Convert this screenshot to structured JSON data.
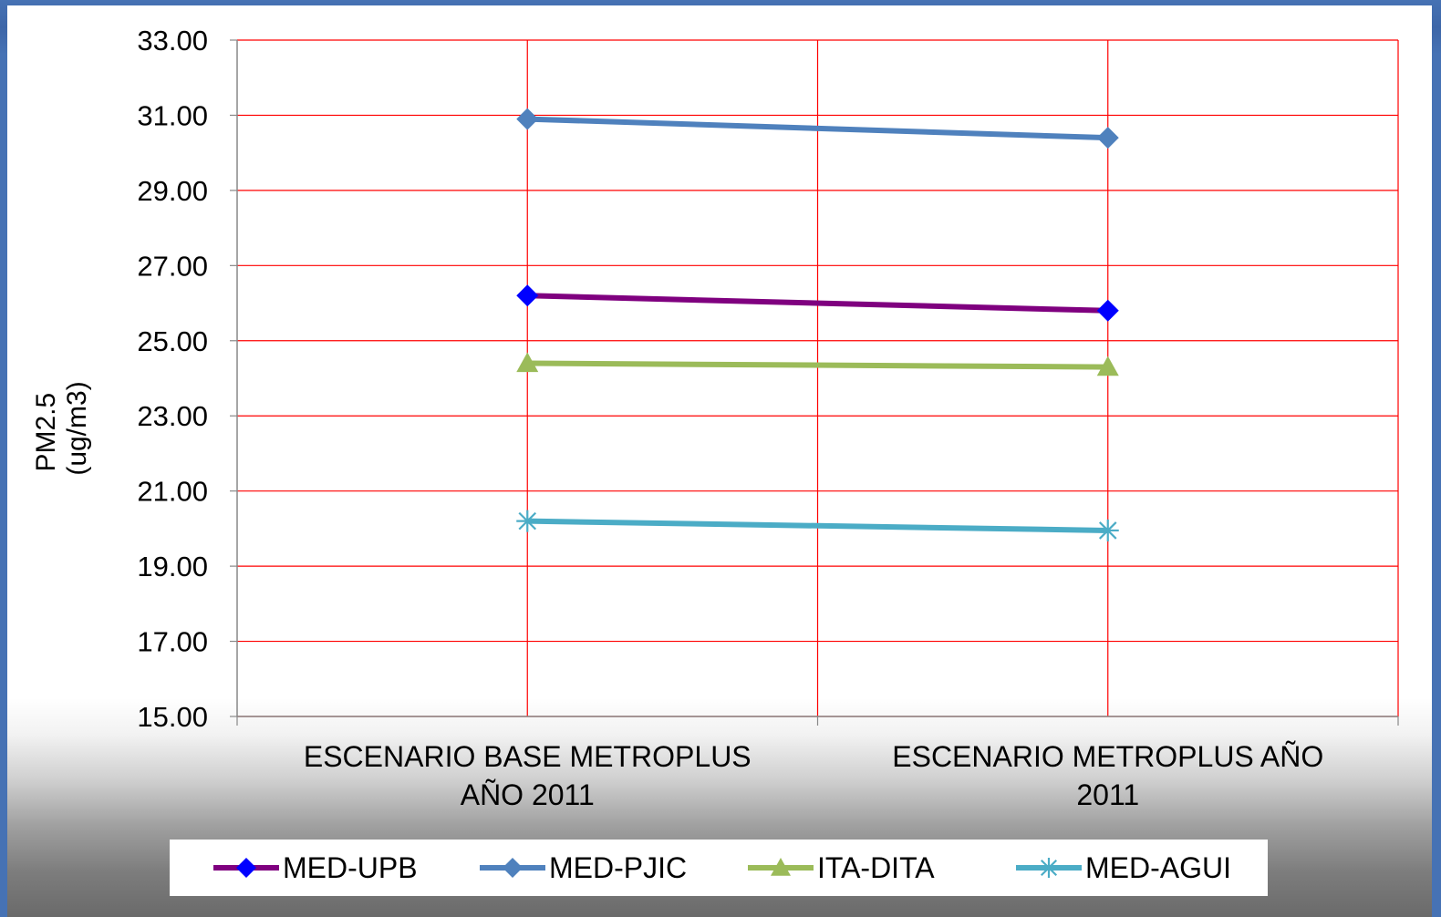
{
  "chart_data": {
    "type": "line",
    "categories": [
      "ESCENARIO BASE METROPLUS AÑO 2011",
      "ESCENARIO METROPLUS  AÑO 2011"
    ],
    "category_lines": [
      [
        "ESCENARIO BASE METROPLUS",
        "AÑO 2011"
      ],
      [
        "ESCENARIO METROPLUS  AÑO",
        "2011"
      ]
    ],
    "ylabel_lines": [
      "PM2.5",
      "(ug/m3)"
    ],
    "ylim": [
      15,
      33
    ],
    "yticks": [
      "15.00",
      "17.00",
      "19.00",
      "21.00",
      "23.00",
      "25.00",
      "27.00",
      "29.00",
      "31.00",
      "33.00"
    ],
    "grid": true,
    "legend_position": "bottom",
    "series": [
      {
        "name": "MED-UPB",
        "values": [
          26.2,
          25.8
        ],
        "line_color": "#7f007f",
        "marker_color": "#0000ff",
        "marker": "diamond"
      },
      {
        "name": "MED-PJIC",
        "values": [
          30.9,
          30.4
        ],
        "line_color": "#4f81bd",
        "marker_color": "#4f81bd",
        "marker": "diamond"
      },
      {
        "name": "ITA-DITA",
        "values": [
          24.4,
          24.3
        ],
        "line_color": "#9bbb59",
        "marker_color": "#9bbb59",
        "marker": "triangle"
      },
      {
        "name": "MED-AGUI",
        "values": [
          20.2,
          19.95
        ],
        "line_color": "#4bacc6",
        "marker_color": "#4bacc6",
        "marker": "star"
      }
    ],
    "grid_color": "#ff0000"
  }
}
